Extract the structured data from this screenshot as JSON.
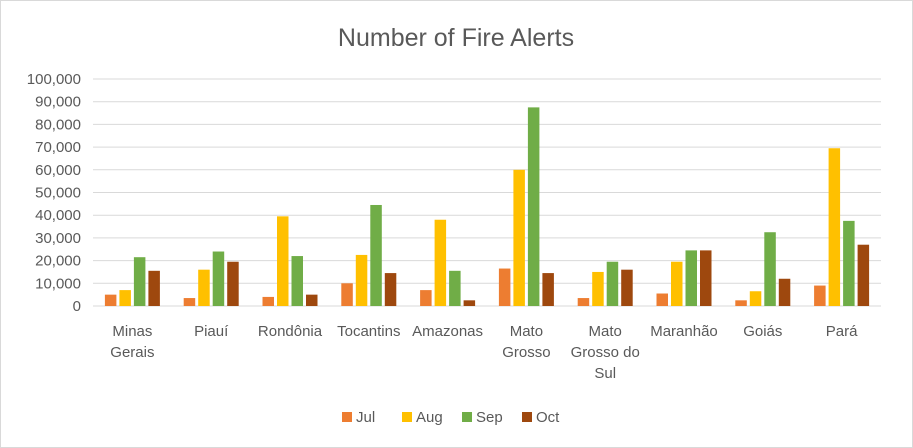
{
  "chart_data": {
    "type": "bar",
    "title": "Number of Fire Alerts",
    "xlabel": "",
    "ylabel": "",
    "ylim": [
      0,
      100000
    ],
    "yticks": [
      0,
      10000,
      20000,
      30000,
      40000,
      50000,
      60000,
      70000,
      80000,
      90000,
      100000
    ],
    "ytick_labels": [
      "0",
      "10,000",
      "20,000",
      "30,000",
      "40,000",
      "50,000",
      "60,000",
      "70,000",
      "80,000",
      "90,000",
      "100,000"
    ],
    "grid": true,
    "legend_position": "bottom",
    "categories": [
      [
        "Minas",
        "Gerais"
      ],
      [
        "Piauí"
      ],
      [
        "Rondônia"
      ],
      [
        "Tocantins"
      ],
      [
        "Amazonas"
      ],
      [
        "Mato",
        "Grosso"
      ],
      [
        "Mato",
        "Grosso do",
        "Sul"
      ],
      [
        "Maranhão"
      ],
      [
        "Goiás"
      ],
      [
        "Pará"
      ]
    ],
    "series": [
      {
        "name": "Jul",
        "color": "#ED7D31",
        "values": [
          5000,
          3500,
          4000,
          10000,
          7000,
          16500,
          3500,
          5500,
          2500,
          9000
        ]
      },
      {
        "name": "Aug",
        "color": "#FFC000",
        "values": [
          7000,
          16000,
          39500,
          22500,
          38000,
          60000,
          15000,
          19500,
          6500,
          69500
        ]
      },
      {
        "name": "Sep",
        "color": "#70AD47",
        "values": [
          21500,
          24000,
          22000,
          44500,
          15500,
          87500,
          19500,
          24500,
          32500,
          37500
        ]
      },
      {
        "name": "Oct",
        "color": "#9E480E",
        "values": [
          15500,
          19500,
          5000,
          14500,
          2500,
          14500,
          16000,
          24500,
          12000,
          27000
        ]
      }
    ]
  }
}
